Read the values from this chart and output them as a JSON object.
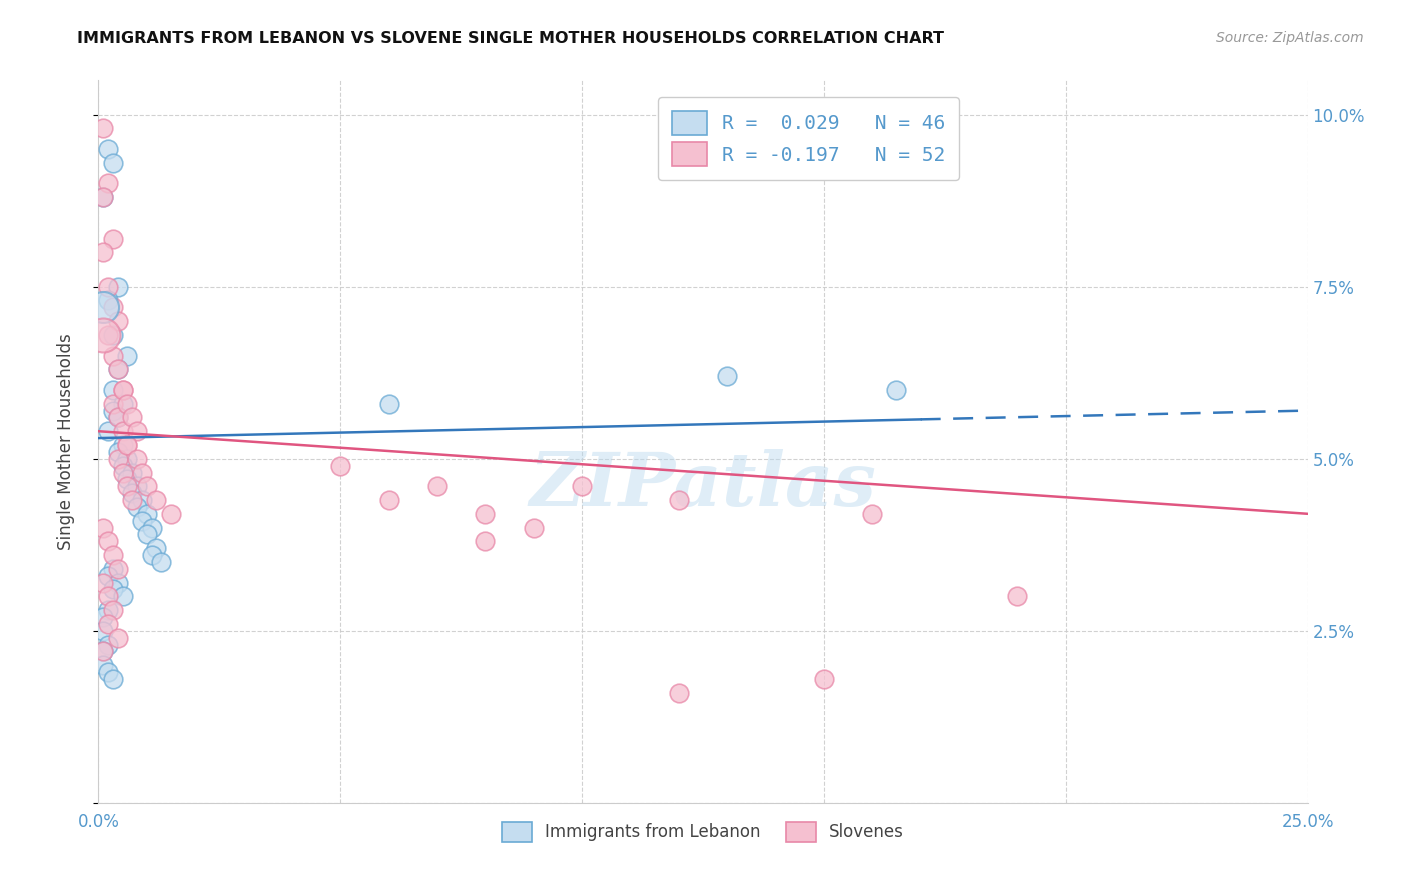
{
  "title": "IMMIGRANTS FROM LEBANON VS SLOVENE SINGLE MOTHER HOUSEHOLDS CORRELATION CHART",
  "source": "Source: ZipAtlas.com",
  "ylabel": "Single Mother Households",
  "xlim": [
    0.0,
    0.25
  ],
  "ylim": [
    0.0,
    0.105
  ],
  "xticks": [
    0.0,
    0.05,
    0.1,
    0.15,
    0.2,
    0.25
  ],
  "xticklabels": [
    "0.0%",
    "",
    "",
    "",
    "",
    "25.0%"
  ],
  "yticks": [
    0.0,
    0.025,
    0.05,
    0.075,
    0.1
  ],
  "yticklabels_right": [
    "",
    "2.5%",
    "5.0%",
    "7.5%",
    "10.0%"
  ],
  "blue_face": "#c5ddf0",
  "blue_edge": "#6aaad4",
  "pink_face": "#f5c0d0",
  "pink_edge": "#e888a8",
  "line_blue": "#3377bb",
  "line_pink": "#e05580",
  "tick_color": "#5599cc",
  "watermark": "ZIPatlas",
  "leb_x": [
    0.002,
    0.003,
    0.001,
    0.004,
    0.002,
    0.003,
    0.006,
    0.004,
    0.003,
    0.005,
    0.003,
    0.004,
    0.002,
    0.005,
    0.004,
    0.006,
    0.005,
    0.007,
    0.006,
    0.008,
    0.007,
    0.009,
    0.008,
    0.01,
    0.009,
    0.011,
    0.01,
    0.012,
    0.011,
    0.013,
    0.003,
    0.002,
    0.004,
    0.003,
    0.005,
    0.002,
    0.001,
    0.001,
    0.002,
    0.001,
    0.001,
    0.002,
    0.003,
    0.13,
    0.165,
    0.06
  ],
  "leb_y": [
    0.095,
    0.093,
    0.088,
    0.075,
    0.073,
    0.068,
    0.065,
    0.063,
    0.06,
    0.058,
    0.057,
    0.056,
    0.054,
    0.052,
    0.051,
    0.05,
    0.049,
    0.048,
    0.047,
    0.046,
    0.045,
    0.044,
    0.043,
    0.042,
    0.041,
    0.04,
    0.039,
    0.037,
    0.036,
    0.035,
    0.034,
    0.033,
    0.032,
    0.031,
    0.03,
    0.028,
    0.027,
    0.025,
    0.023,
    0.022,
    0.02,
    0.019,
    0.018,
    0.062,
    0.06,
    0.058
  ],
  "slv_x": [
    0.001,
    0.002,
    0.001,
    0.003,
    0.001,
    0.002,
    0.003,
    0.004,
    0.002,
    0.003,
    0.004,
    0.005,
    0.003,
    0.004,
    0.005,
    0.006,
    0.004,
    0.005,
    0.006,
    0.007,
    0.005,
    0.006,
    0.007,
    0.008,
    0.006,
    0.008,
    0.009,
    0.01,
    0.012,
    0.015,
    0.001,
    0.002,
    0.003,
    0.004,
    0.001,
    0.002,
    0.003,
    0.002,
    0.004,
    0.001,
    0.05,
    0.07,
    0.06,
    0.08,
    0.1,
    0.12,
    0.16,
    0.08,
    0.09,
    0.19,
    0.15,
    0.12
  ],
  "slv_y": [
    0.098,
    0.09,
    0.088,
    0.082,
    0.08,
    0.075,
    0.072,
    0.07,
    0.068,
    0.065,
    0.063,
    0.06,
    0.058,
    0.056,
    0.054,
    0.052,
    0.05,
    0.048,
    0.046,
    0.044,
    0.06,
    0.058,
    0.056,
    0.054,
    0.052,
    0.05,
    0.048,
    0.046,
    0.044,
    0.042,
    0.04,
    0.038,
    0.036,
    0.034,
    0.032,
    0.03,
    0.028,
    0.026,
    0.024,
    0.022,
    0.049,
    0.046,
    0.044,
    0.042,
    0.046,
    0.044,
    0.042,
    0.038,
    0.04,
    0.03,
    0.018,
    0.016
  ],
  "leb_line_x0": 0.0,
  "leb_line_x_solid_end": 0.17,
  "leb_line_x1": 0.25,
  "leb_line_y_at_x0": 0.053,
  "leb_line_y_at_x1": 0.057,
  "slv_line_x0": 0.0,
  "slv_line_x1": 0.25,
  "slv_line_y_at_x0": 0.054,
  "slv_line_y_at_x1": 0.042
}
